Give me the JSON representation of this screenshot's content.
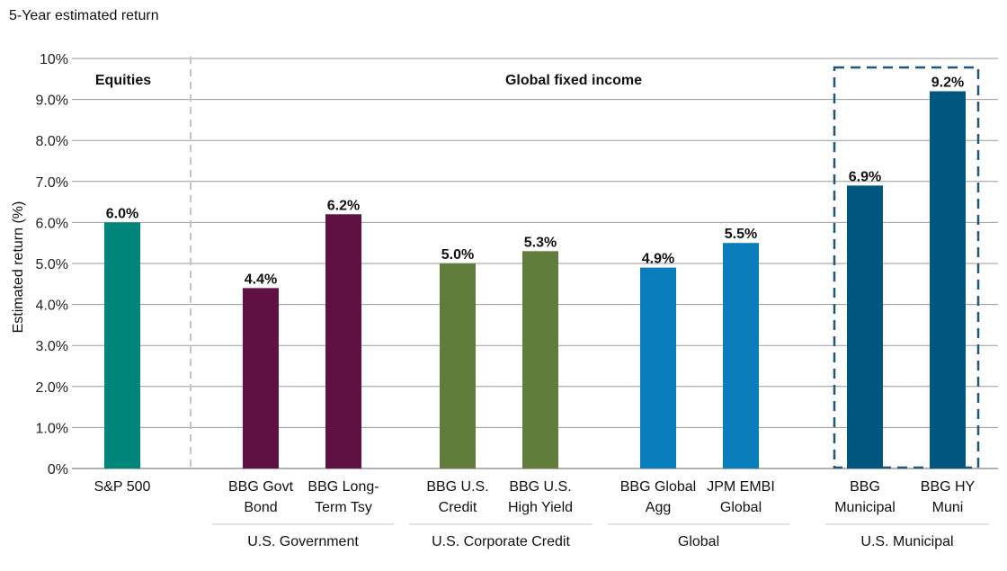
{
  "chart_data": {
    "type": "bar",
    "title": "5-Year estimated return",
    "ylabel": "Estimated return (%)",
    "ylim": [
      0,
      10
    ],
    "y_ticks": [
      0,
      1,
      2,
      3,
      4,
      5,
      6,
      7,
      8,
      9,
      10
    ],
    "y_tick_labels": [
      "0%",
      "1.0%",
      "2.0%",
      "3.0%",
      "4.0%",
      "5.0%",
      "6.0%",
      "7.0%",
      "8.0%",
      "9.0%",
      "10%"
    ],
    "grid": true,
    "sections": [
      {
        "label": "Equities"
      },
      {
        "label": "Global fixed income"
      }
    ],
    "bars": [
      {
        "label": [
          "S&P 500"
        ],
        "value": 6.0,
        "value_label": "6.0%",
        "color": "#00857a"
      },
      {
        "label": [
          "BBG Govt",
          "Bond"
        ],
        "value": 4.4,
        "value_label": "4.4%",
        "color": "#5f1144"
      },
      {
        "label": [
          "BBG Long-",
          "Term Tsy"
        ],
        "value": 6.2,
        "value_label": "6.2%",
        "color": "#5f1144"
      },
      {
        "label": [
          "BBG U.S.",
          "Credit"
        ],
        "value": 5.0,
        "value_label": "5.0%",
        "color": "#617d3b"
      },
      {
        "label": [
          "BBG U.S.",
          "High Yield"
        ],
        "value": 5.3,
        "value_label": "5.3%",
        "color": "#617d3b"
      },
      {
        "label": [
          "BBG Global",
          "Agg"
        ],
        "value": 4.9,
        "value_label": "4.9%",
        "color": "#0a7ebd"
      },
      {
        "label": [
          "JPM EMBI",
          "Global"
        ],
        "value": 5.5,
        "value_label": "5.5%",
        "color": "#0a7ebd"
      },
      {
        "label": [
          "BBG",
          "Municipal"
        ],
        "value": 6.9,
        "value_label": "6.9%",
        "color": "#00567f"
      },
      {
        "label": [
          "BBG HY",
          "Muni"
        ],
        "value": 9.2,
        "value_label": "9.2%",
        "color": "#00567f"
      }
    ],
    "groups": [
      {
        "label": "U.S. Government"
      },
      {
        "label": "U.S. Corporate Credit"
      },
      {
        "label": "Global"
      },
      {
        "label": "U.S. Municipal"
      }
    ]
  }
}
